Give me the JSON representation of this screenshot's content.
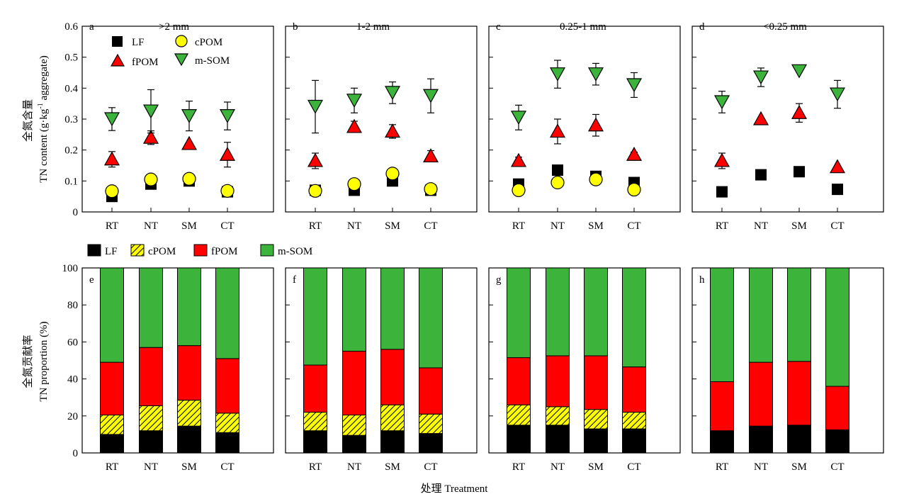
{
  "figure": {
    "x_axis_title": "处理 Treatment",
    "top_ylabel_cn": "全氮含量",
    "top_ylabel_en_pre": "TN content (g·kg",
    "top_ylabel_en_sup": "-1",
    "top_ylabel_en_post": " aggregate)",
    "bottom_ylabel_cn": "全氮贡献率",
    "bottom_ylabel_en": "TN proportion (%)",
    "top_legend": [
      {
        "label": "LF",
        "marker": "square",
        "color": "#000000"
      },
      {
        "label": "cPOM",
        "marker": "circle",
        "color": "#ffff00"
      },
      {
        "label": "fPOM",
        "marker": "triangle-up",
        "color": "#ff0000"
      },
      {
        "label": "m-SOM",
        "marker": "triangle-down",
        "color": "#3cb43c"
      }
    ],
    "bottom_legend": [
      {
        "label": "LF",
        "color": "#000000",
        "hatch": false
      },
      {
        "label": "cPOM",
        "color": "#ffff00",
        "hatch": true
      },
      {
        "label": "fPOM",
        "color": "#ff0000",
        "hatch": false
      },
      {
        "label": "m-SOM",
        "color": "#3cb43c",
        "hatch": false
      }
    ]
  },
  "chart_data": [
    {
      "type": "scatter",
      "panel": "a",
      "title": ">2 mm",
      "categories": [
        "RT",
        "NT",
        "SM",
        "CT"
      ],
      "ylim": [
        0,
        0.6
      ],
      "yticks": [
        "0",
        "0.1",
        "0.2",
        "0.3",
        "0.4",
        "0.5",
        "0.6"
      ],
      "series": [
        {
          "name": "LF",
          "values": [
            0.05,
            0.09,
            0.1,
            0.065
          ],
          "errors": [
            0,
            0,
            0,
            0
          ]
        },
        {
          "name": "cPOM",
          "values": [
            0.067,
            0.105,
            0.107,
            0.068
          ],
          "errors": [
            0,
            0,
            0,
            0
          ]
        },
        {
          "name": "fPOM",
          "values": [
            0.17,
            0.24,
            0.22,
            0.185
          ],
          "errors": [
            0.025,
            0.022,
            0,
            0.04
          ]
        },
        {
          "name": "m-SOM",
          "values": [
            0.3,
            0.325,
            0.31,
            0.31
          ],
          "errors": [
            0.037,
            0.07,
            0.048,
            0.045
          ]
        }
      ]
    },
    {
      "type": "scatter",
      "panel": "b",
      "title": "1-2 mm",
      "categories": [
        "RT",
        "NT",
        "SM",
        "CT"
      ],
      "ylim": [
        0,
        0.6
      ],
      "series": [
        {
          "name": "LF",
          "values": [
            0.07,
            0.07,
            0.1,
            0.07
          ],
          "errors": [
            0,
            0,
            0,
            0
          ]
        },
        {
          "name": "cPOM",
          "values": [
            0.068,
            0.09,
            0.124,
            0.074
          ],
          "errors": [
            0,
            0,
            0,
            0
          ]
        },
        {
          "name": "fPOM",
          "values": [
            0.165,
            0.275,
            0.26,
            0.18
          ],
          "errors": [
            0.025,
            0.018,
            0.022,
            0.018
          ]
        },
        {
          "name": "m-SOM",
          "values": [
            0.34,
            0.36,
            0.385,
            0.375
          ],
          "errors": [
            0.085,
            0.04,
            0.035,
            0.055
          ]
        }
      ]
    },
    {
      "type": "scatter",
      "panel": "c",
      "title": "0.25-1 mm",
      "categories": [
        "RT",
        "NT",
        "SM",
        "CT"
      ],
      "ylim": [
        0,
        0.6
      ],
      "series": [
        {
          "name": "LF",
          "values": [
            0.09,
            0.135,
            0.115,
            0.095
          ],
          "errors": [
            0,
            0,
            0,
            0
          ]
        },
        {
          "name": "cPOM",
          "values": [
            0.07,
            0.095,
            0.105,
            0.072
          ],
          "errors": [
            0,
            0,
            0,
            0
          ]
        },
        {
          "name": "fPOM",
          "values": [
            0.165,
            0.26,
            0.28,
            0.185
          ],
          "errors": [
            0.012,
            0.04,
            0.035,
            0.008
          ]
        },
        {
          "name": "m-SOM",
          "values": [
            0.305,
            0.445,
            0.445,
            0.41
          ],
          "errors": [
            0.04,
            0.045,
            0.035,
            0.04
          ]
        }
      ]
    },
    {
      "type": "scatter",
      "panel": "d",
      "title": "<0.25 mm",
      "categories": [
        "RT",
        "NT",
        "SM",
        "CT"
      ],
      "ylim": [
        0,
        0.6
      ],
      "series": [
        {
          "name": "LF",
          "values": [
            0.065,
            0.12,
            0.13,
            0.073
          ],
          "errors": [
            0,
            0,
            0,
            0
          ]
        },
        {
          "name": "cPOM",
          "values": [
            null,
            null,
            null,
            null
          ],
          "errors": [
            0,
            0,
            0,
            0
          ]
        },
        {
          "name": "fPOM",
          "values": [
            0.165,
            0.3,
            0.32,
            0.145
          ],
          "errors": [
            0.025,
            0,
            0.03,
            0
          ]
        },
        {
          "name": "m-SOM",
          "values": [
            0.355,
            0.435,
            0.455,
            0.38
          ],
          "errors": [
            0.035,
            0.03,
            0,
            0.045
          ]
        }
      ]
    },
    {
      "type": "bar",
      "stacked": true,
      "panel": "e",
      "categories": [
        "RT",
        "NT",
        "SM",
        "CT"
      ],
      "ylim": [
        0,
        100
      ],
      "yticks": [
        "0",
        "20",
        "40",
        "60",
        "80",
        "100"
      ],
      "series": [
        {
          "name": "LF",
          "values": [
            10,
            12,
            14.5,
            11
          ]
        },
        {
          "name": "cPOM",
          "values": [
            10.5,
            13.5,
            14,
            10.5
          ]
        },
        {
          "name": "fPOM",
          "values": [
            28.5,
            31.5,
            29.5,
            29.5
          ]
        },
        {
          "name": "m-SOM",
          "values": [
            51,
            43,
            42,
            49
          ]
        }
      ]
    },
    {
      "type": "bar",
      "stacked": true,
      "panel": "f",
      "categories": [
        "RT",
        "NT",
        "SM",
        "CT"
      ],
      "ylim": [
        0,
        100
      ],
      "series": [
        {
          "name": "LF",
          "values": [
            12,
            9.5,
            12,
            10.5
          ]
        },
        {
          "name": "cPOM",
          "values": [
            10,
            11,
            14,
            10.5
          ]
        },
        {
          "name": "fPOM",
          "values": [
            25.5,
            34.5,
            30,
            25
          ]
        },
        {
          "name": "m-SOM",
          "values": [
            52.5,
            45,
            44,
            54
          ]
        }
      ]
    },
    {
      "type": "bar",
      "stacked": true,
      "panel": "g",
      "categories": [
        "RT",
        "NT",
        "SM",
        "CT"
      ],
      "ylim": [
        0,
        100
      ],
      "series": [
        {
          "name": "LF",
          "values": [
            15,
            15,
            13,
            13
          ]
        },
        {
          "name": "cPOM",
          "values": [
            11,
            10,
            10.5,
            9
          ]
        },
        {
          "name": "fPOM",
          "values": [
            25.5,
            27.5,
            29,
            24.5
          ]
        },
        {
          "name": "m-SOM",
          "values": [
            48.5,
            47.5,
            47.5,
            53.5
          ]
        }
      ]
    },
    {
      "type": "bar",
      "stacked": true,
      "panel": "h",
      "categories": [
        "RT",
        "NT",
        "SM",
        "CT"
      ],
      "ylim": [
        0,
        100
      ],
      "series": [
        {
          "name": "LF",
          "values": [
            12,
            14.5,
            15,
            12.5
          ]
        },
        {
          "name": "cPOM",
          "values": [
            0,
            0,
            0,
            0
          ]
        },
        {
          "name": "fPOM",
          "values": [
            26.5,
            34.5,
            34.5,
            23.5
          ]
        },
        {
          "name": "m-SOM",
          "values": [
            61.5,
            51,
            50.5,
            64
          ]
        }
      ]
    }
  ]
}
